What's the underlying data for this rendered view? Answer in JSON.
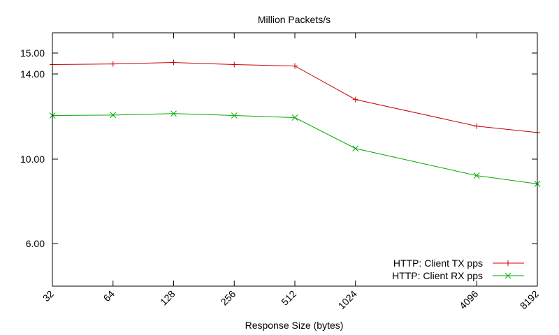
{
  "chart_data": {
    "type": "line",
    "title": "Million Packets/s",
    "xlabel": "Response Size (bytes)",
    "ylabel": "",
    "x_scale": "log2",
    "x": [
      32,
      64,
      128,
      256,
      512,
      1024,
      4096,
      8192
    ],
    "x_tick_labels": [
      "32",
      "64",
      "128",
      "256",
      "512",
      "1024",
      "4096",
      "8192"
    ],
    "y_ticks": [
      6.0,
      10.0,
      14.0,
      15.0
    ],
    "y_tick_labels": [
      "6.00",
      "10.00",
      "14.00",
      "15.00"
    ],
    "ylim": [
      4.0,
      16.0
    ],
    "grid": false,
    "legend_position": "bottom-right",
    "series": [
      {
        "name": "HTTP: Client TX pps",
        "color": "#cc0000",
        "marker": "plus",
        "values": [
          14.45,
          14.48,
          14.55,
          14.45,
          14.38,
          12.8,
          11.55,
          11.25
        ]
      },
      {
        "name": "HTTP: Client RX pps",
        "color": "#00aa00",
        "marker": "x",
        "values": [
          12.05,
          12.07,
          12.14,
          12.05,
          11.95,
          10.5,
          9.22,
          8.83
        ]
      }
    ]
  }
}
